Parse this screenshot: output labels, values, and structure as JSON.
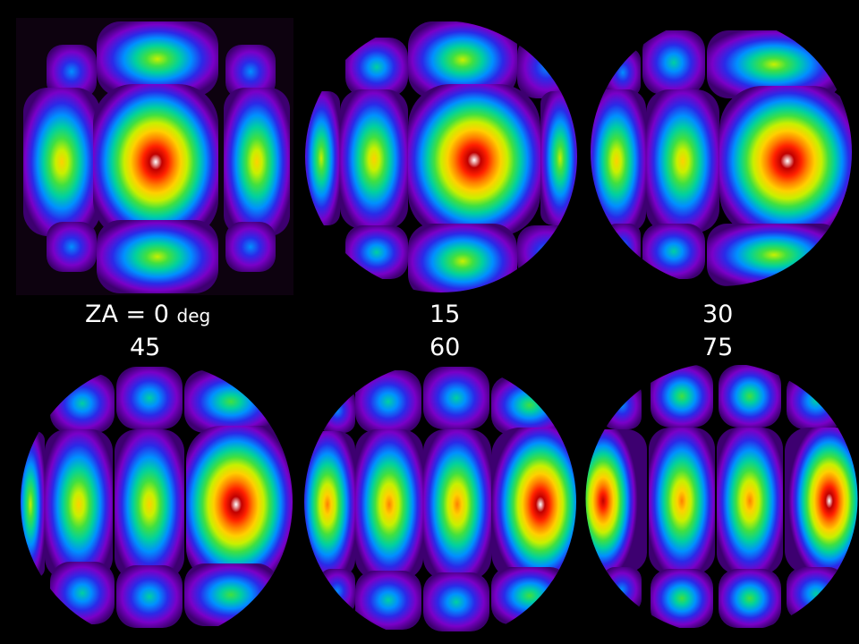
{
  "labels": {
    "za_prefix": "ZA = ",
    "za_0": "0",
    "za_unit": "deg",
    "za_15": "15",
    "za_30": "30",
    "za_45": "45",
    "za_60": "60",
    "za_75": "75"
  },
  "panels": [
    {
      "id": "za-0",
      "zenith_angle_deg": 0,
      "outline": "square",
      "frame_color": "#0d020f"
    },
    {
      "id": "za-15",
      "zenith_angle_deg": 15,
      "outline": "circle"
    },
    {
      "id": "za-30",
      "zenith_angle_deg": 30,
      "outline": "circle"
    },
    {
      "id": "za-45",
      "zenith_angle_deg": 45,
      "outline": "circle"
    },
    {
      "id": "za-60",
      "zenith_angle_deg": 60,
      "outline": "circle"
    },
    {
      "id": "za-75",
      "zenith_angle_deg": 75,
      "outline": "circle"
    }
  ],
  "colors": {
    "background": "#000000",
    "text": "#ffffff",
    "colormap": [
      "#3d0070",
      "#7a00c8",
      "#2a2ae8",
      "#0090ff",
      "#00d0a0",
      "#40e040",
      "#c8f000",
      "#ffd000",
      "#ff8000",
      "#ff2000",
      "#c00000",
      "#ffffff"
    ]
  }
}
